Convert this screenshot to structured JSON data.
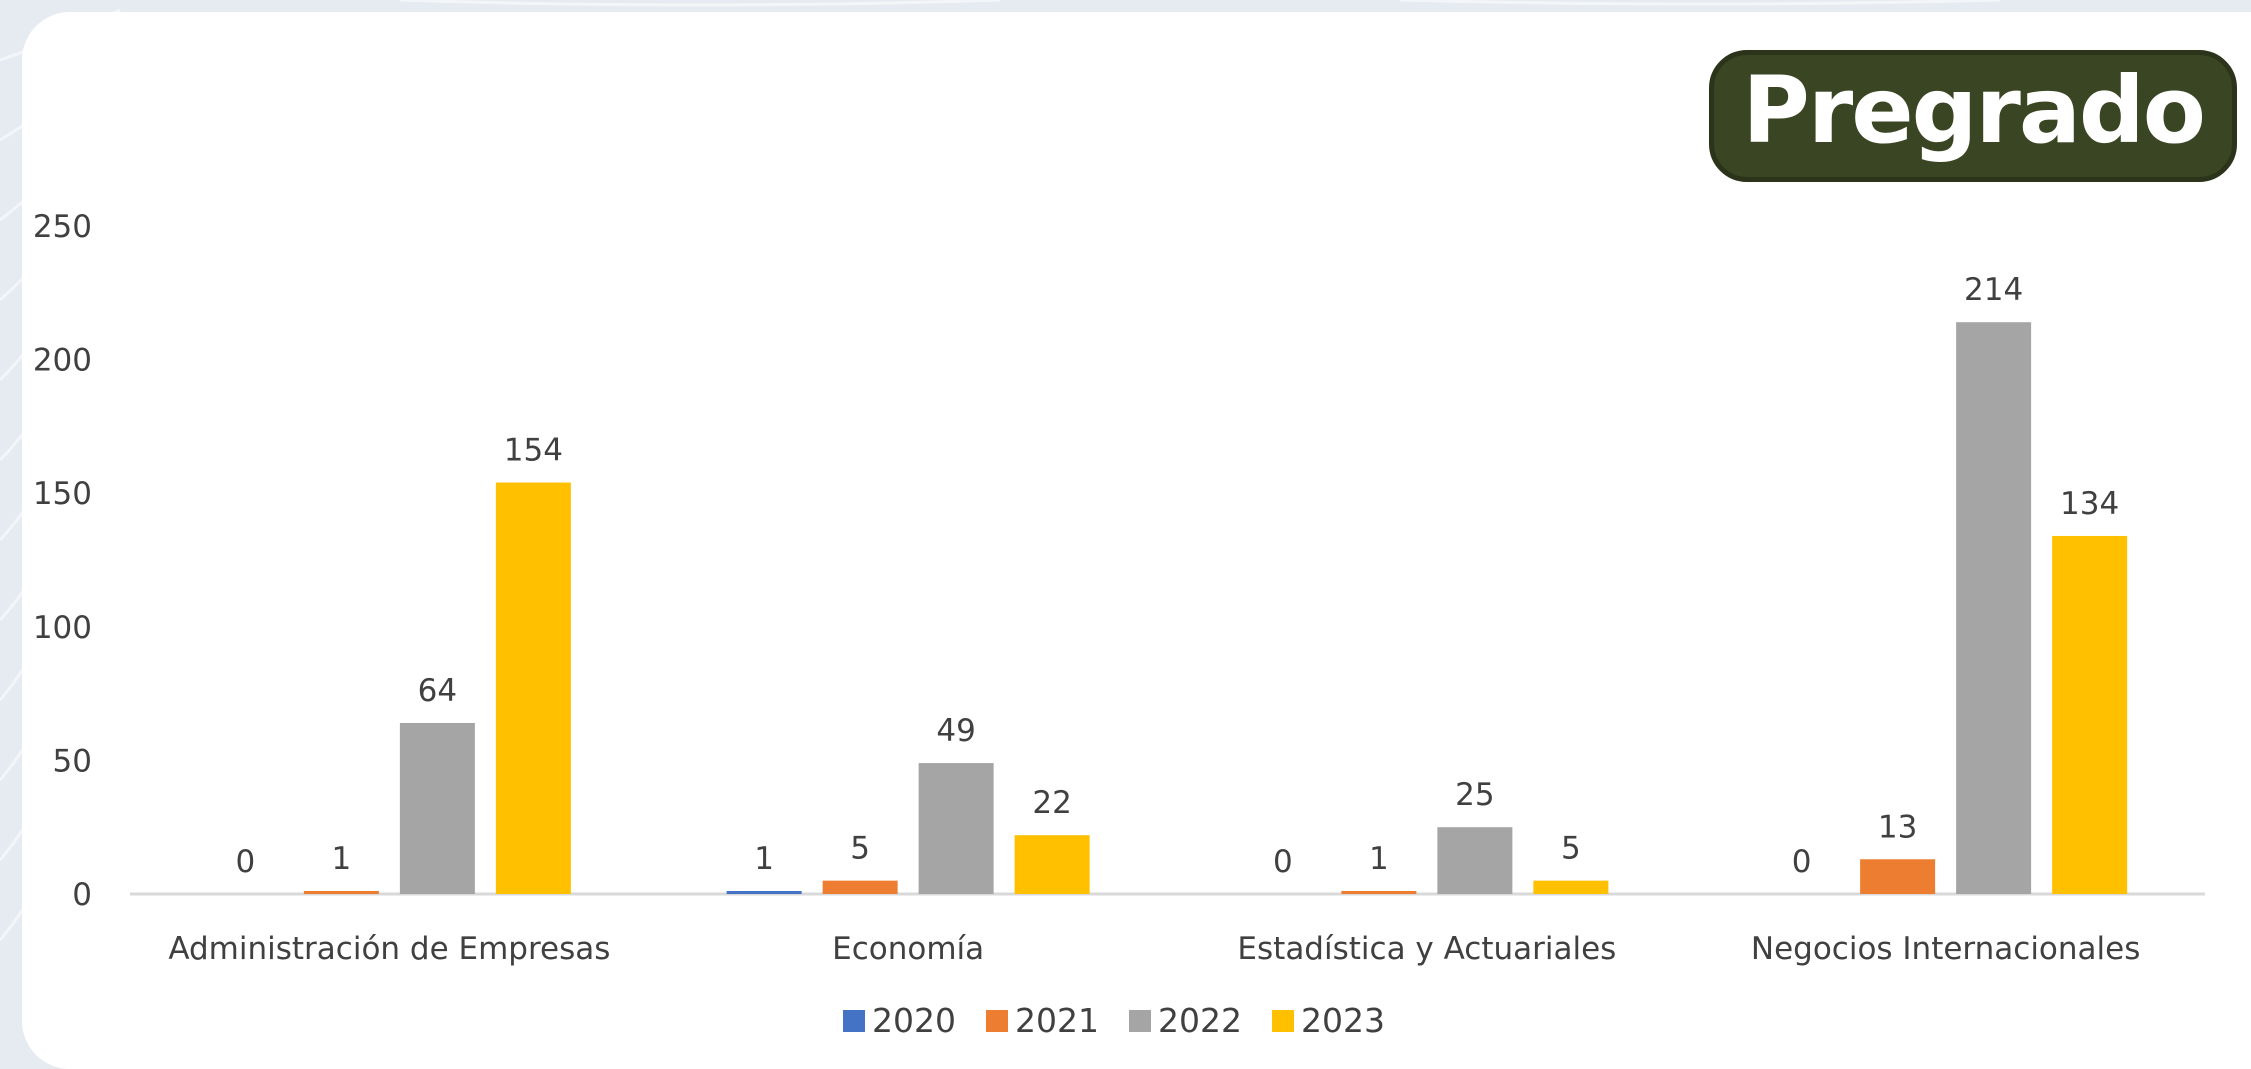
{
  "badge": {
    "label": "Pregrado",
    "bg_color": "#3a4523"
  },
  "chart_data": {
    "type": "bar",
    "title": "",
    "xlabel": "",
    "ylabel": "",
    "ylim": [
      0,
      250
    ],
    "yticks": [
      0,
      50,
      100,
      150,
      200,
      250
    ],
    "grid": false,
    "legend_position": "bottom-center",
    "categories": [
      "Administración de Empresas",
      "Economía",
      "Estadística y Actuariales",
      "Negocios Internacionales"
    ],
    "series": [
      {
        "name": "2020",
        "color": "#4472c4",
        "values": [
          0,
          1,
          0,
          0
        ]
      },
      {
        "name": "2021",
        "color": "#ed7d31",
        "values": [
          1,
          5,
          1,
          13
        ]
      },
      {
        "name": "2022",
        "color": "#a5a5a5",
        "values": [
          64,
          49,
          25,
          214
        ]
      },
      {
        "name": "2023",
        "color": "#ffc000",
        "values": [
          154,
          22,
          5,
          134
        ]
      }
    ]
  }
}
